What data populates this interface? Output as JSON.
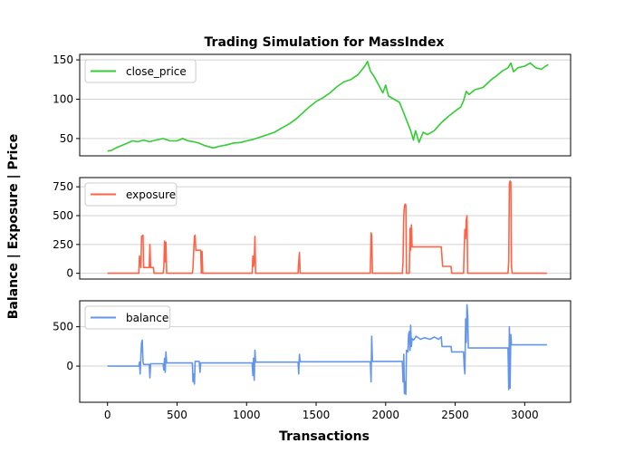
{
  "chart_data": {
    "type": "line",
    "title": "Trading Simulation for MassIndex",
    "xlabel": "Transactions",
    "ylabel": "Balance | Exposure | Price",
    "xlim": [
      -200,
      3330
    ],
    "xticks": [
      0,
      500,
      1000,
      1500,
      2000,
      2500,
      3000
    ],
    "grid": "horizontal",
    "legend_placement": "top-left",
    "panels": [
      {
        "series_name": "close_price",
        "color": "#33cc33",
        "ylim": [
          28,
          157
        ],
        "yticks": [
          50,
          100,
          150
        ],
        "points": [
          [
            0,
            34
          ],
          [
            30,
            35
          ],
          [
            60,
            38
          ],
          [
            100,
            41
          ],
          [
            140,
            44
          ],
          [
            180,
            47
          ],
          [
            220,
            46
          ],
          [
            260,
            48
          ],
          [
            300,
            46
          ],
          [
            350,
            48
          ],
          [
            400,
            50
          ],
          [
            450,
            47
          ],
          [
            500,
            47
          ],
          [
            540,
            50
          ],
          [
            580,
            47
          ],
          [
            620,
            46
          ],
          [
            660,
            44
          ],
          [
            700,
            41
          ],
          [
            760,
            38
          ],
          [
            800,
            40
          ],
          [
            860,
            42
          ],
          [
            900,
            44
          ],
          [
            960,
            45
          ],
          [
            1000,
            47
          ],
          [
            1050,
            49
          ],
          [
            1100,
            52
          ],
          [
            1150,
            55
          ],
          [
            1200,
            58
          ],
          [
            1250,
            63
          ],
          [
            1300,
            68
          ],
          [
            1350,
            74
          ],
          [
            1400,
            82
          ],
          [
            1450,
            90
          ],
          [
            1500,
            97
          ],
          [
            1550,
            102
          ],
          [
            1600,
            108
          ],
          [
            1650,
            116
          ],
          [
            1700,
            122
          ],
          [
            1750,
            125
          ],
          [
            1800,
            131
          ],
          [
            1850,
            142
          ],
          [
            1870,
            148
          ],
          [
            1890,
            136
          ],
          [
            1920,
            128
          ],
          [
            1950,
            118
          ],
          [
            1980,
            108
          ],
          [
            2000,
            118
          ],
          [
            2020,
            104
          ],
          [
            2060,
            100
          ],
          [
            2100,
            96
          ],
          [
            2140,
            78
          ],
          [
            2180,
            60
          ],
          [
            2200,
            48
          ],
          [
            2215,
            60
          ],
          [
            2240,
            45
          ],
          [
            2270,
            58
          ],
          [
            2300,
            55
          ],
          [
            2350,
            60
          ],
          [
            2400,
            70
          ],
          [
            2450,
            78
          ],
          [
            2500,
            85
          ],
          [
            2540,
            90
          ],
          [
            2560,
            98
          ],
          [
            2580,
            110
          ],
          [
            2600,
            106
          ],
          [
            2640,
            112
          ],
          [
            2700,
            115
          ],
          [
            2760,
            125
          ],
          [
            2800,
            130
          ],
          [
            2840,
            136
          ],
          [
            2880,
            140
          ],
          [
            2900,
            146
          ],
          [
            2920,
            135
          ],
          [
            2950,
            140
          ],
          [
            3000,
            142
          ],
          [
            3040,
            146
          ],
          [
            3080,
            140
          ],
          [
            3120,
            138
          ],
          [
            3150,
            142
          ],
          [
            3170,
            144
          ]
        ]
      },
      {
        "series_name": "exposure",
        "color": "#ff6347",
        "ylim": [
          -50,
          830
        ],
        "yticks": [
          0,
          250,
          500,
          750
        ],
        "points": [
          [
            0,
            0
          ],
          [
            225,
            0
          ],
          [
            230,
            150
          ],
          [
            240,
            50
          ],
          [
            245,
            320
          ],
          [
            255,
            330
          ],
          [
            260,
            50
          ],
          [
            300,
            50
          ],
          [
            305,
            250
          ],
          [
            310,
            50
          ],
          [
            330,
            50
          ],
          [
            335,
            0
          ],
          [
            400,
            0
          ],
          [
            405,
            50
          ],
          [
            410,
            280
          ],
          [
            415,
            100
          ],
          [
            420,
            270
          ],
          [
            425,
            0
          ],
          [
            610,
            0
          ],
          [
            615,
            50
          ],
          [
            620,
            200
          ],
          [
            625,
            320
          ],
          [
            630,
            330
          ],
          [
            635,
            200
          ],
          [
            670,
            200
          ],
          [
            675,
            0
          ],
          [
            680,
            190
          ],
          [
            685,
            0
          ],
          [
            1040,
            0
          ],
          [
            1045,
            150
          ],
          [
            1050,
            60
          ],
          [
            1055,
            100
          ],
          [
            1060,
            320
          ],
          [
            1065,
            0
          ],
          [
            1370,
            0
          ],
          [
            1375,
            100
          ],
          [
            1380,
            180
          ],
          [
            1385,
            0
          ],
          [
            1890,
            0
          ],
          [
            1895,
            350
          ],
          [
            1900,
            330
          ],
          [
            1905,
            0
          ],
          [
            2120,
            0
          ],
          [
            2125,
            100
          ],
          [
            2130,
            500
          ],
          [
            2135,
            580
          ],
          [
            2140,
            600
          ],
          [
            2145,
            590
          ],
          [
            2150,
            0
          ],
          [
            2170,
            0
          ],
          [
            2175,
            390
          ],
          [
            2180,
            200
          ],
          [
            2185,
            420
          ],
          [
            2190,
            230
          ],
          [
            2400,
            230
          ],
          [
            2410,
            60
          ],
          [
            2470,
            60
          ],
          [
            2475,
            0
          ],
          [
            2560,
            0
          ],
          [
            2565,
            200
          ],
          [
            2570,
            380
          ],
          [
            2575,
            300
          ],
          [
            2580,
            460
          ],
          [
            2585,
            500
          ],
          [
            2590,
            0
          ],
          [
            2880,
            0
          ],
          [
            2885,
            100
          ],
          [
            2890,
            780
          ],
          [
            2895,
            800
          ],
          [
            2900,
            790
          ],
          [
            2905,
            60
          ],
          [
            2910,
            0
          ],
          [
            3160,
            0
          ]
        ]
      },
      {
        "series_name": "balance",
        "color": "#6495ed",
        "ylim": [
          -460,
          830
        ],
        "yticks": [
          0,
          500
        ],
        "points": [
          [
            0,
            0
          ],
          [
            225,
            0
          ],
          [
            230,
            50
          ],
          [
            235,
            -100
          ],
          [
            240,
            150
          ],
          [
            245,
            300
          ],
          [
            250,
            330
          ],
          [
            255,
            50
          ],
          [
            260,
            20
          ],
          [
            300,
            20
          ],
          [
            305,
            -150
          ],
          [
            310,
            30
          ],
          [
            330,
            30
          ],
          [
            400,
            30
          ],
          [
            405,
            -50
          ],
          [
            410,
            100
          ],
          [
            415,
            -80
          ],
          [
            420,
            180
          ],
          [
            425,
            40
          ],
          [
            610,
            40
          ],
          [
            615,
            -200
          ],
          [
            620,
            -100
          ],
          [
            625,
            -230
          ],
          [
            630,
            60
          ],
          [
            660,
            60
          ],
          [
            665,
            -80
          ],
          [
            670,
            40
          ],
          [
            1040,
            40
          ],
          [
            1045,
            -120
          ],
          [
            1050,
            100
          ],
          [
            1055,
            -180
          ],
          [
            1060,
            200
          ],
          [
            1065,
            50
          ],
          [
            1370,
            50
          ],
          [
            1375,
            -100
          ],
          [
            1380,
            150
          ],
          [
            1385,
            55
          ],
          [
            1890,
            55
          ],
          [
            1895,
            -200
          ],
          [
            1900,
            380
          ],
          [
            1905,
            60
          ],
          [
            2120,
            60
          ],
          [
            2125,
            -200
          ],
          [
            2130,
            150
          ],
          [
            2135,
            -350
          ],
          [
            2140,
            -200
          ],
          [
            2145,
            -360
          ],
          [
            2150,
            200
          ],
          [
            2160,
            180
          ],
          [
            2165,
            400
          ],
          [
            2170,
            440
          ],
          [
            2175,
            200
          ],
          [
            2180,
            520
          ],
          [
            2185,
            250
          ],
          [
            2190,
            350
          ],
          [
            2200,
            330
          ],
          [
            2220,
            380
          ],
          [
            2250,
            340
          ],
          [
            2280,
            360
          ],
          [
            2320,
            340
          ],
          [
            2350,
            370
          ],
          [
            2380,
            340
          ],
          [
            2400,
            370
          ],
          [
            2405,
            250
          ],
          [
            2470,
            250
          ],
          [
            2475,
            180
          ],
          [
            2560,
            180
          ],
          [
            2565,
            0
          ],
          [
            2570,
            -100
          ],
          [
            2575,
            600
          ],
          [
            2580,
            300
          ],
          [
            2585,
            780
          ],
          [
            2590,
            650
          ],
          [
            2595,
            230
          ],
          [
            2880,
            230
          ],
          [
            2885,
            -300
          ],
          [
            2890,
            500
          ],
          [
            2895,
            -280
          ],
          [
            2900,
            400
          ],
          [
            2905,
            270
          ],
          [
            3160,
            270
          ]
        ]
      }
    ]
  }
}
